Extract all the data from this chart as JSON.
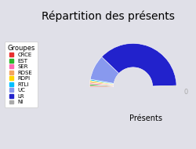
{
  "title": "Répartition des présents",
  "xlabel": "Présents",
  "groups": [
    "CRCE",
    "EST",
    "SER",
    "RDSE",
    "RDPI",
    "RTLI",
    "UC",
    "LR",
    "NI"
  ],
  "values": [
    0.05,
    0.05,
    0.05,
    0.05,
    0.05,
    0.05,
    1,
    4,
    0.05
  ],
  "real_values": [
    0,
    0,
    0,
    0,
    0,
    0,
    1,
    4,
    0
  ],
  "colors": [
    "#e83030",
    "#2db82d",
    "#ff69b4",
    "#f4a460",
    "#ffd700",
    "#00bfff",
    "#8899ee",
    "#2222cc",
    "#aaaaaa"
  ],
  "background_color": "#e0e0e8",
  "title_fontsize": 10,
  "label_fontsize": 6
}
